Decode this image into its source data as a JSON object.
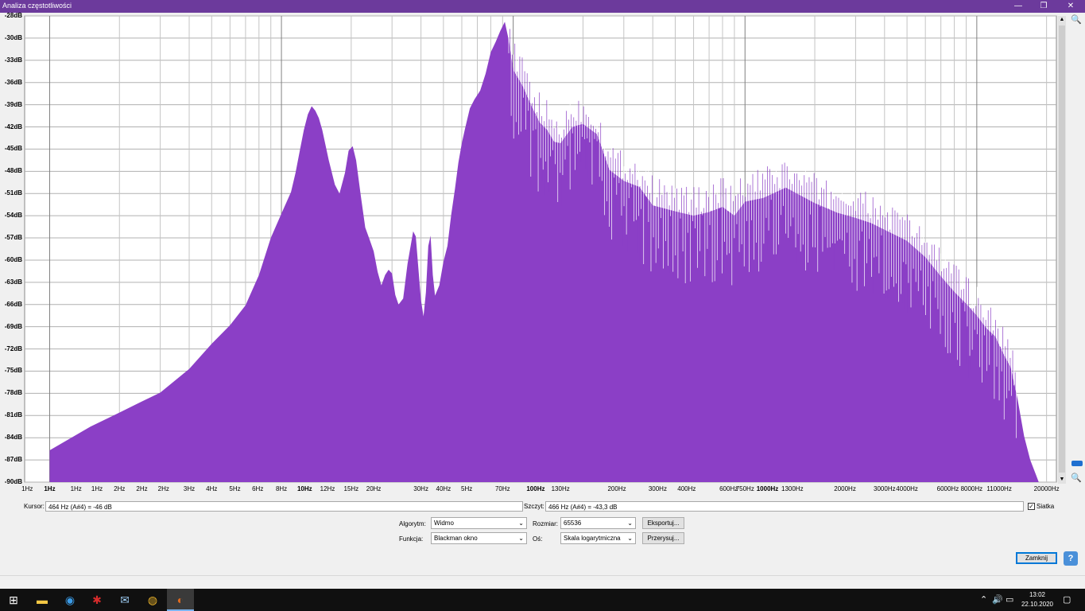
{
  "window": {
    "title": "Analiza częstotliwości",
    "minimize": "—",
    "restore": "❐",
    "close": "✕"
  },
  "chart_data": {
    "type": "area",
    "fill_color": "#8b3fc6",
    "xscale": "log",
    "xlim": [
      1,
      22050
    ],
    "ylim": [
      -90,
      -27
    ],
    "grid": true,
    "y_ticks": [
      "-28dB",
      "-30dB",
      "-33dB",
      "-36dB",
      "-39dB",
      "-42dB",
      "-45dB",
      "-48dB",
      "-51dB",
      "-54dB",
      "-57dB",
      "-60dB",
      "-63dB",
      "-66dB",
      "-69dB",
      "-72dB",
      "-75dB",
      "-78dB",
      "-81dB",
      "-84dB",
      "-87dB",
      "-90dB"
    ],
    "x_ticks": [
      {
        "label": "1Hz",
        "v": 0.8,
        "major": false
      },
      {
        "label": "1Hz",
        "v": 1.0,
        "major": true
      },
      {
        "label": "1Hz",
        "v": 1.3,
        "major": false
      },
      {
        "label": "1Hz",
        "v": 1.6,
        "major": false
      },
      {
        "label": "2Hz",
        "v": 2.0,
        "major": false
      },
      {
        "label": "2Hz",
        "v": 2.5,
        "major": false
      },
      {
        "label": "2Hz",
        "v": 3.1,
        "major": false
      },
      {
        "label": "3Hz",
        "v": 4.0,
        "major": false
      },
      {
        "label": "4Hz",
        "v": 5.0,
        "major": false
      },
      {
        "label": "5Hz",
        "v": 6.3,
        "major": false
      },
      {
        "label": "6Hz",
        "v": 7.9,
        "major": false
      },
      {
        "label": "8Hz",
        "v": 10,
        "major": false
      },
      {
        "label": "10Hz",
        "v": 12.6,
        "major": true
      },
      {
        "label": "12Hz",
        "v": 15.8,
        "major": false
      },
      {
        "label": "15Hz",
        "v": 20,
        "major": false
      },
      {
        "label": "20Hz",
        "v": 25,
        "major": false
      },
      {
        "label": "30Hz",
        "v": 40,
        "major": false
      },
      {
        "label": "40Hz",
        "v": 50,
        "major": false
      },
      {
        "label": "5Hz",
        "v": 63,
        "major": false
      },
      {
        "label": "70Hz",
        "v": 90,
        "major": false
      },
      {
        "label": "100Hz",
        "v": 125,
        "major": true
      },
      {
        "label": "130Hz",
        "v": 160,
        "major": false
      },
      {
        "label": "200Hz",
        "v": 280,
        "major": false
      },
      {
        "label": "300Hz",
        "v": 420,
        "major": false
      },
      {
        "label": "400Hz",
        "v": 560,
        "major": false
      },
      {
        "label": "600Hz",
        "v": 850,
        "major": false
      },
      {
        "label": "750Hz",
        "v": 1000,
        "major": false
      },
      {
        "label": "1000Hz",
        "v": 1250,
        "major": true
      },
      {
        "label": "1300Hz",
        "v": 1600,
        "major": false
      },
      {
        "label": "2000Hz",
        "v": 2700,
        "major": false
      },
      {
        "label": "3000Hz",
        "v": 4000,
        "major": false
      },
      {
        "label": "4000Hz",
        "v": 5000,
        "major": false
      },
      {
        "label": "6000Hz",
        "v": 7500,
        "major": false
      },
      {
        "label": "8000Hz",
        "v": 9500,
        "major": false
      },
      {
        "label": "11000Hz",
        "v": 12500,
        "major": false
      },
      {
        "label": "20000Hz",
        "v": 20000,
        "major": false
      }
    ],
    "points": [
      [
        1,
        -85.7
      ],
      [
        1.5,
        -82.5
      ],
      [
        2,
        -80.6
      ],
      [
        2.5,
        -79.1
      ],
      [
        3,
        -77.9
      ],
      [
        4,
        -74.7
      ],
      [
        5,
        -71.3
      ],
      [
        6,
        -68.8
      ],
      [
        7,
        -66.1
      ],
      [
        8,
        -62
      ],
      [
        9,
        -57
      ],
      [
        10,
        -53.7
      ],
      [
        11,
        -50.8
      ],
      [
        11.5,
        -48.2
      ],
      [
        12,
        -45.2
      ],
      [
        12.5,
        -42.4
      ],
      [
        13,
        -40.3
      ],
      [
        13.5,
        -39.2
      ],
      [
        14,
        -39.8
      ],
      [
        14.5,
        -40.8
      ],
      [
        15,
        -42.4
      ],
      [
        16,
        -46.5
      ],
      [
        17,
        -49.8
      ],
      [
        17.8,
        -51.0
      ],
      [
        18.8,
        -48.2
      ],
      [
        19.5,
        -45.2
      ],
      [
        20.3,
        -44.6
      ],
      [
        21,
        -46.5
      ],
      [
        22,
        -51.3
      ],
      [
        23,
        -55.6
      ],
      [
        24,
        -57.2
      ],
      [
        25,
        -58.8
      ],
      [
        26,
        -61.6
      ],
      [
        27,
        -63.4
      ],
      [
        28,
        -62.0
      ],
      [
        29,
        -61.3
      ],
      [
        30,
        -61.8
      ],
      [
        31,
        -64.7
      ],
      [
        32,
        -66.0
      ],
      [
        33.5,
        -65.2
      ],
      [
        35,
        -60.5
      ],
      [
        37,
        -56.1
      ],
      [
        38,
        -56.8
      ],
      [
        39,
        -61.2
      ],
      [
        40,
        -65.4
      ],
      [
        41,
        -67.6
      ],
      [
        42,
        -64.4
      ],
      [
        43,
        -58.1
      ],
      [
        44,
        -56.7
      ],
      [
        45,
        -62.0
      ],
      [
        46,
        -64.8
      ],
      [
        48,
        -63.4
      ],
      [
        50,
        -60.2
      ],
      [
        52,
        -58.1
      ],
      [
        54,
        -53.9
      ],
      [
        56,
        -50.5
      ],
      [
        58,
        -46.8
      ],
      [
        60,
        -44.2
      ],
      [
        62,
        -42.2
      ],
      [
        65,
        -39.5
      ],
      [
        68,
        -38.3
      ],
      [
        72,
        -37.1
      ],
      [
        76,
        -34.8
      ],
      [
        80,
        -31.9
      ],
      [
        84,
        -30.5
      ],
      [
        88,
        -29.0
      ],
      [
        92,
        -27.8
      ],
      [
        96,
        -30.5
      ],
      [
        100,
        -34.3
      ],
      [
        110,
        -36.5
      ],
      [
        120,
        -39.2
      ],
      [
        130,
        -41.4
      ],
      [
        140,
        -42.4
      ],
      [
        150,
        -44.0
      ],
      [
        160,
        -44.2
      ],
      [
        180,
        -42.0
      ],
      [
        200,
        -41.6
      ],
      [
        230,
        -43.0
      ],
      [
        260,
        -47.8
      ],
      [
        300,
        -49.3
      ],
      [
        350,
        -50.1
      ],
      [
        400,
        -52.6
      ],
      [
        500,
        -53.4
      ],
      [
        600,
        -54.0
      ],
      [
        700,
        -53.5
      ],
      [
        800,
        -52.8
      ],
      [
        900,
        -54.0
      ],
      [
        1000,
        -52.1
      ],
      [
        1200,
        -51.6
      ],
      [
        1500,
        -50.2
      ],
      [
        2000,
        -52.3
      ],
      [
        2500,
        -53.6
      ],
      [
        3000,
        -54.3
      ],
      [
        3500,
        -55.0
      ],
      [
        4000,
        -55.9
      ],
      [
        5000,
        -57.4
      ],
      [
        6000,
        -59.6
      ],
      [
        7000,
        -62.2
      ],
      [
        8000,
        -64.3
      ],
      [
        9000,
        -65.9
      ],
      [
        10000,
        -67.5
      ],
      [
        11000,
        -69.2
      ],
      [
        12000,
        -70.3
      ],
      [
        13000,
        -72.6
      ],
      [
        14000,
        -74.5
      ],
      [
        15000,
        -78.8
      ],
      [
        16000,
        -83.8
      ],
      [
        17000,
        -87.0
      ],
      [
        18000,
        -89.0
      ],
      [
        18500,
        -90
      ]
    ]
  },
  "controls": {
    "cursor_label": "Kursor:",
    "cursor_value": "464 Hz (A#4) = -46 dB",
    "peak_label": "Szczyt:",
    "peak_value": "466 Hz (A#4) = -43,3 dB",
    "grid_label": "Siatka",
    "grid_checked": "✓",
    "algorithm_label": "Algorytm:",
    "algorithm_value": "Widmo",
    "size_label": "Rozmiar:",
    "size_value": "65536",
    "function_label": "Funkcja:",
    "function_value": "Blackman okno",
    "axis_label": "Oś:",
    "axis_value": "Skala logarytmiczna",
    "export_button": "Eksportuj...",
    "replot_button": "Przerysuj...",
    "close_button": "Zamknij",
    "help_button": "?"
  },
  "taskbar": {
    "apps": [
      "windows-start-icon",
      "file-explorer-icon",
      "edge-icon",
      "red-app-icon",
      "mail-icon",
      "chrome-icon",
      "audacity-icon"
    ],
    "time": "13:02",
    "date": "22.10.2020"
  }
}
